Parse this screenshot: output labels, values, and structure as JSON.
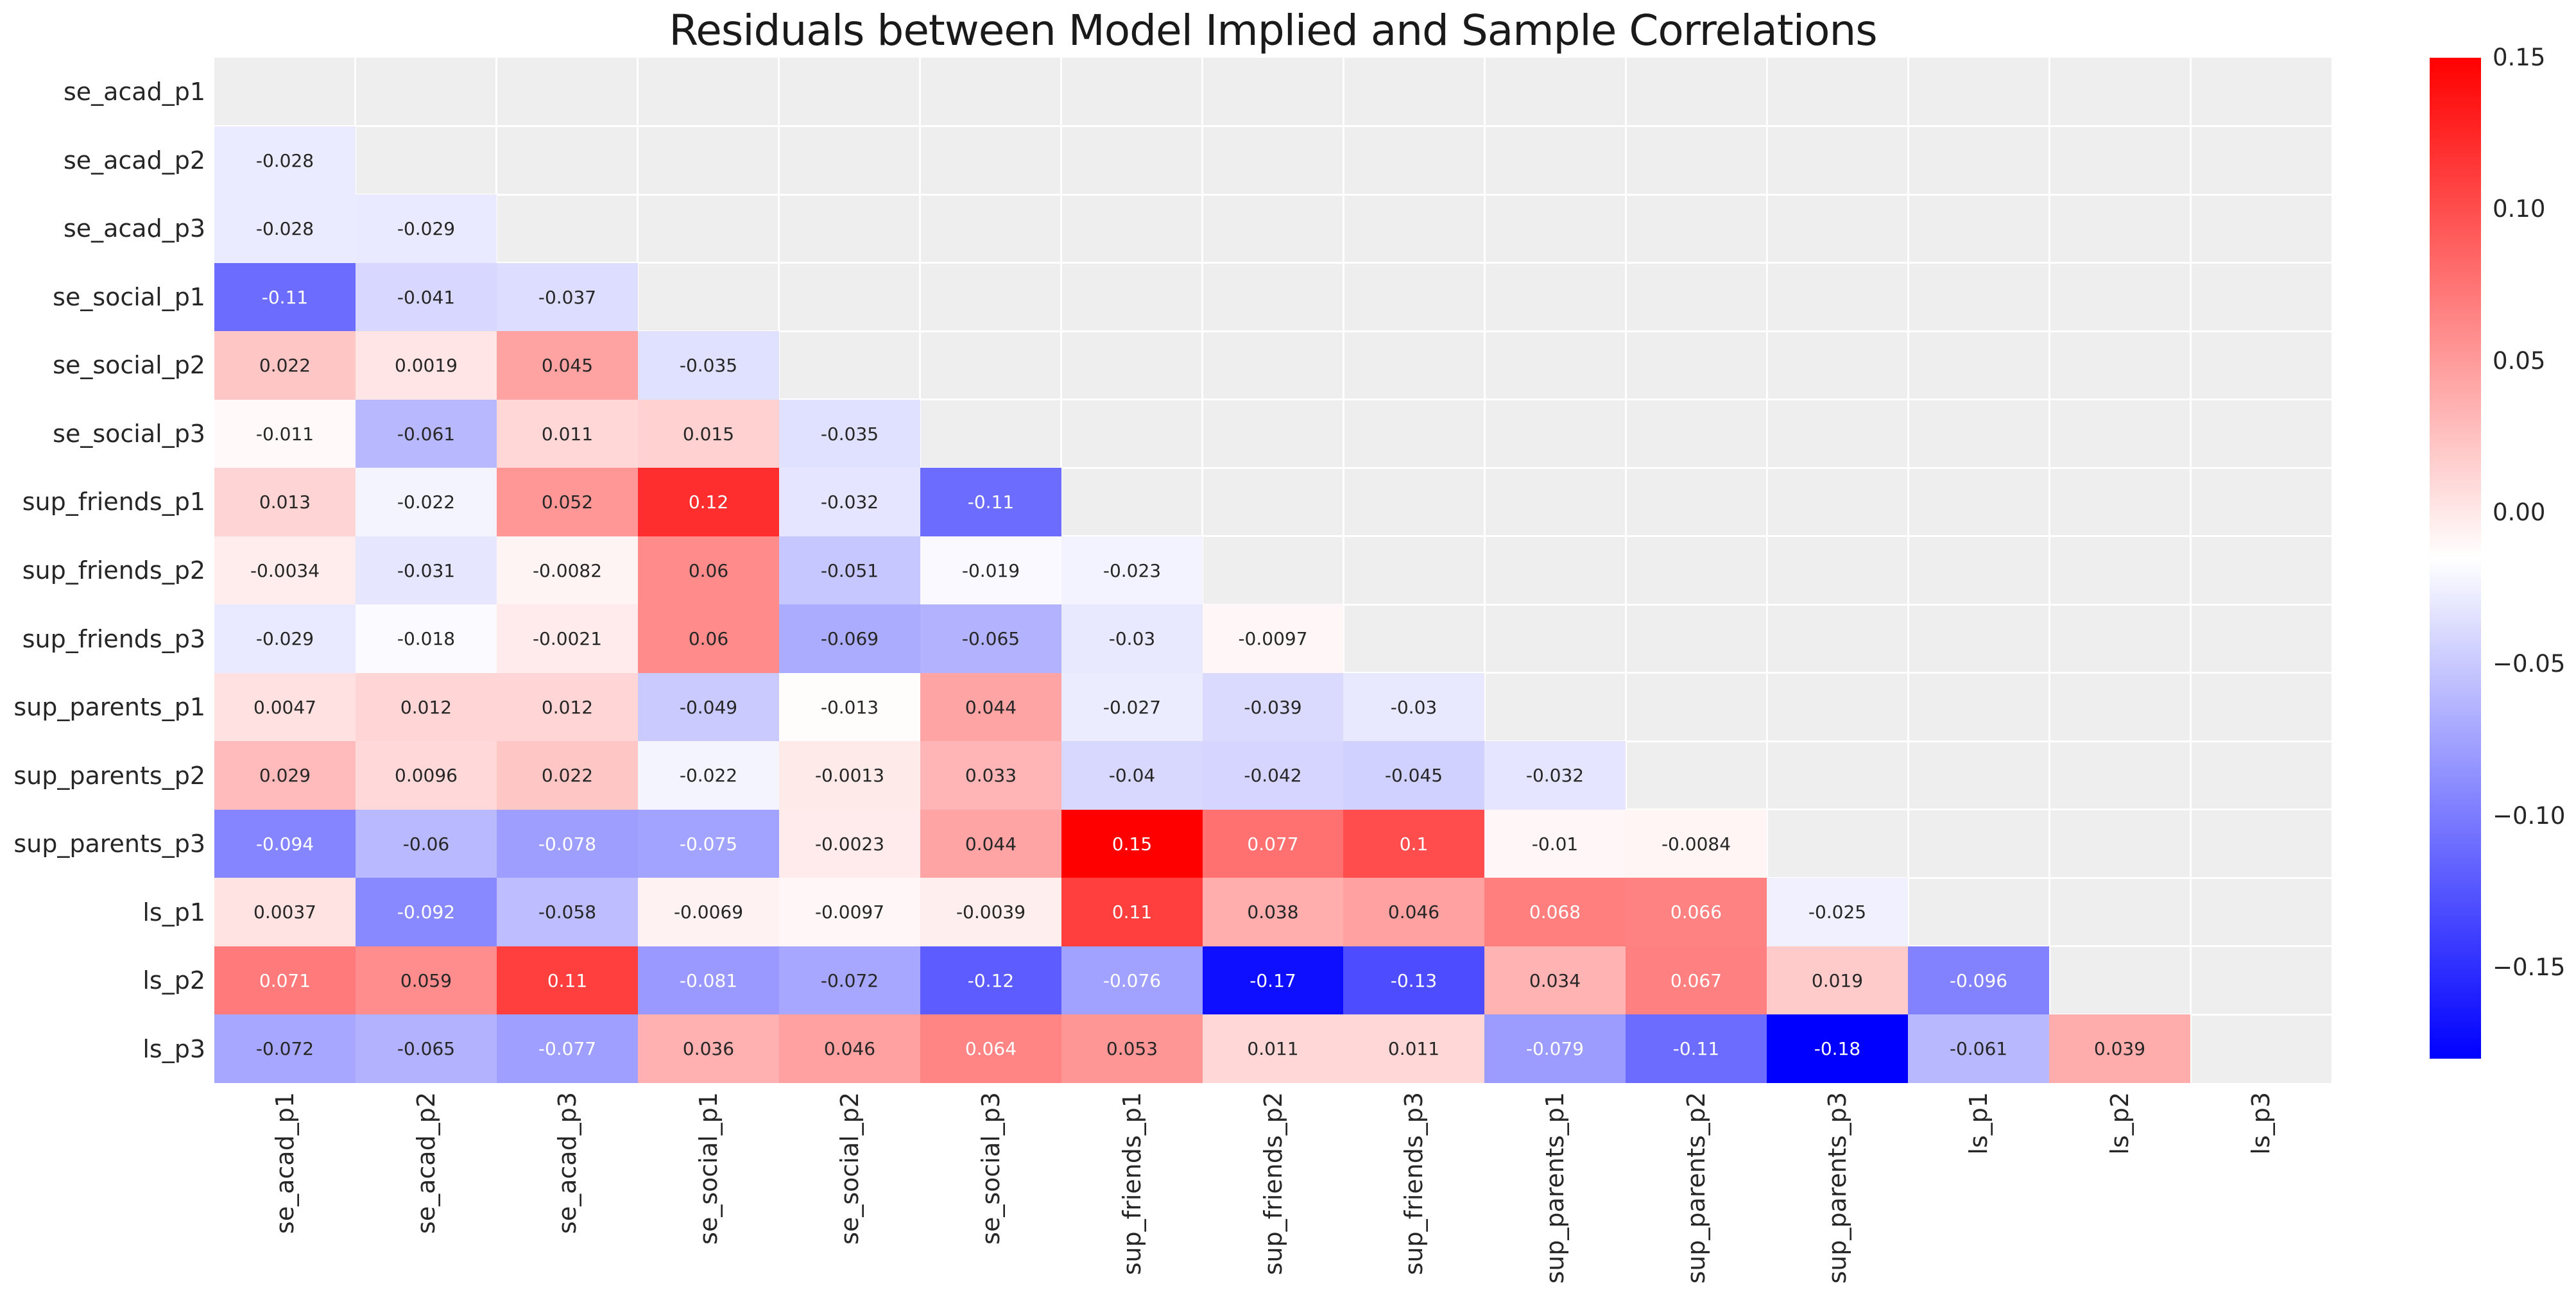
{
  "figure": {
    "title": "Residuals between Model Implied and Sample Correlations"
  },
  "chart_data": {
    "type": "heatmap",
    "title": "Residuals between Model Implied and Sample Correlations",
    "row_labels": [
      "se_acad_p1",
      "se_acad_p2",
      "se_acad_p3",
      "se_social_p1",
      "se_social_p2",
      "se_social_p3",
      "sup_friends_p1",
      "sup_friends_p2",
      "sup_friends_p3",
      "sup_parents_p1",
      "sup_parents_p2",
      "sup_parents_p3",
      "ls_p1",
      "ls_p2",
      "ls_p3"
    ],
    "col_labels": [
      "se_acad_p1",
      "se_acad_p2",
      "se_acad_p3",
      "se_social_p1",
      "se_social_p2",
      "se_social_p3",
      "sup_friends_p1",
      "sup_friends_p2",
      "sup_friends_p3",
      "sup_parents_p1",
      "sup_parents_p2",
      "sup_parents_p3",
      "ls_p1",
      "ls_p2",
      "ls_p3"
    ],
    "mask": "upper triangle and diagonal hidden; values shown below diagonal only",
    "matrix": [
      [
        null,
        null,
        null,
        null,
        null,
        null,
        null,
        null,
        null,
        null,
        null,
        null,
        null,
        null,
        null
      ],
      [
        -0.028,
        null,
        null,
        null,
        null,
        null,
        null,
        null,
        null,
        null,
        null,
        null,
        null,
        null,
        null
      ],
      [
        -0.028,
        -0.029,
        null,
        null,
        null,
        null,
        null,
        null,
        null,
        null,
        null,
        null,
        null,
        null,
        null
      ],
      [
        -0.11,
        -0.041,
        -0.037,
        null,
        null,
        null,
        null,
        null,
        null,
        null,
        null,
        null,
        null,
        null,
        null
      ],
      [
        0.022,
        0.0019,
        0.045,
        -0.035,
        null,
        null,
        null,
        null,
        null,
        null,
        null,
        null,
        null,
        null,
        null
      ],
      [
        -0.011,
        -0.061,
        0.011,
        0.015,
        -0.035,
        null,
        null,
        null,
        null,
        null,
        null,
        null,
        null,
        null,
        null
      ],
      [
        0.013,
        -0.022,
        0.052,
        0.12,
        -0.032,
        -0.11,
        null,
        null,
        null,
        null,
        null,
        null,
        null,
        null,
        null
      ],
      [
        -0.0034,
        -0.031,
        -0.0082,
        0.06,
        -0.051,
        -0.019,
        -0.023,
        null,
        null,
        null,
        null,
        null,
        null,
        null,
        null
      ],
      [
        -0.029,
        -0.018,
        -0.0021,
        0.06,
        -0.069,
        -0.065,
        -0.03,
        -0.0097,
        null,
        null,
        null,
        null,
        null,
        null,
        null
      ],
      [
        0.0047,
        0.012,
        0.012,
        -0.049,
        -0.013,
        0.044,
        -0.027,
        -0.039,
        -0.03,
        null,
        null,
        null,
        null,
        null,
        null
      ],
      [
        0.029,
        0.0096,
        0.022,
        -0.022,
        -0.0013,
        0.033,
        -0.04,
        -0.042,
        -0.045,
        -0.032,
        null,
        null,
        null,
        null,
        null
      ],
      [
        -0.094,
        -0.06,
        -0.078,
        -0.075,
        -0.0023,
        0.044,
        0.15,
        0.077,
        0.1,
        -0.01,
        -0.0084,
        null,
        null,
        null,
        null
      ],
      [
        0.0037,
        -0.092,
        -0.058,
        -0.0069,
        -0.0097,
        -0.0039,
        0.11,
        0.038,
        0.046,
        0.068,
        0.066,
        -0.025,
        null,
        null,
        null
      ],
      [
        0.071,
        0.059,
        0.11,
        -0.081,
        -0.072,
        -0.12,
        -0.076,
        -0.17,
        -0.13,
        0.034,
        0.067,
        0.019,
        -0.096,
        null,
        null
      ],
      [
        -0.072,
        -0.065,
        -0.077,
        0.036,
        0.046,
        0.064,
        0.053,
        0.011,
        0.011,
        -0.079,
        -0.11,
        -0.18,
        -0.061,
        0.039,
        null
      ]
    ],
    "colormap": "bwr",
    "vmin": -0.18,
    "vmax": 0.15,
    "annotation_format": "2 significant digits",
    "colorbar": {
      "tick_labels": [
        "0.15",
        "0.10",
        "0.05",
        "0.00",
        "−0.05",
        "−0.10",
        "−0.15"
      ],
      "tick_values": [
        0.15,
        0.1,
        0.05,
        0.0,
        -0.05,
        -0.1,
        -0.15
      ],
      "top_color": "#ff0000",
      "middle_color": "#ffffff",
      "bottom_color": "#0000ff"
    },
    "colors": {
      "background": "#ffffff",
      "masked_cell": "#eeeeee",
      "gridline": "#ffffff",
      "title_text": "#1a1a1a",
      "tick_text": "#262626",
      "annot_dark": "#262626",
      "annot_light": "#ffffff"
    },
    "legend_position": "right colorbar",
    "grid": "white gridlines visible in masked region"
  }
}
